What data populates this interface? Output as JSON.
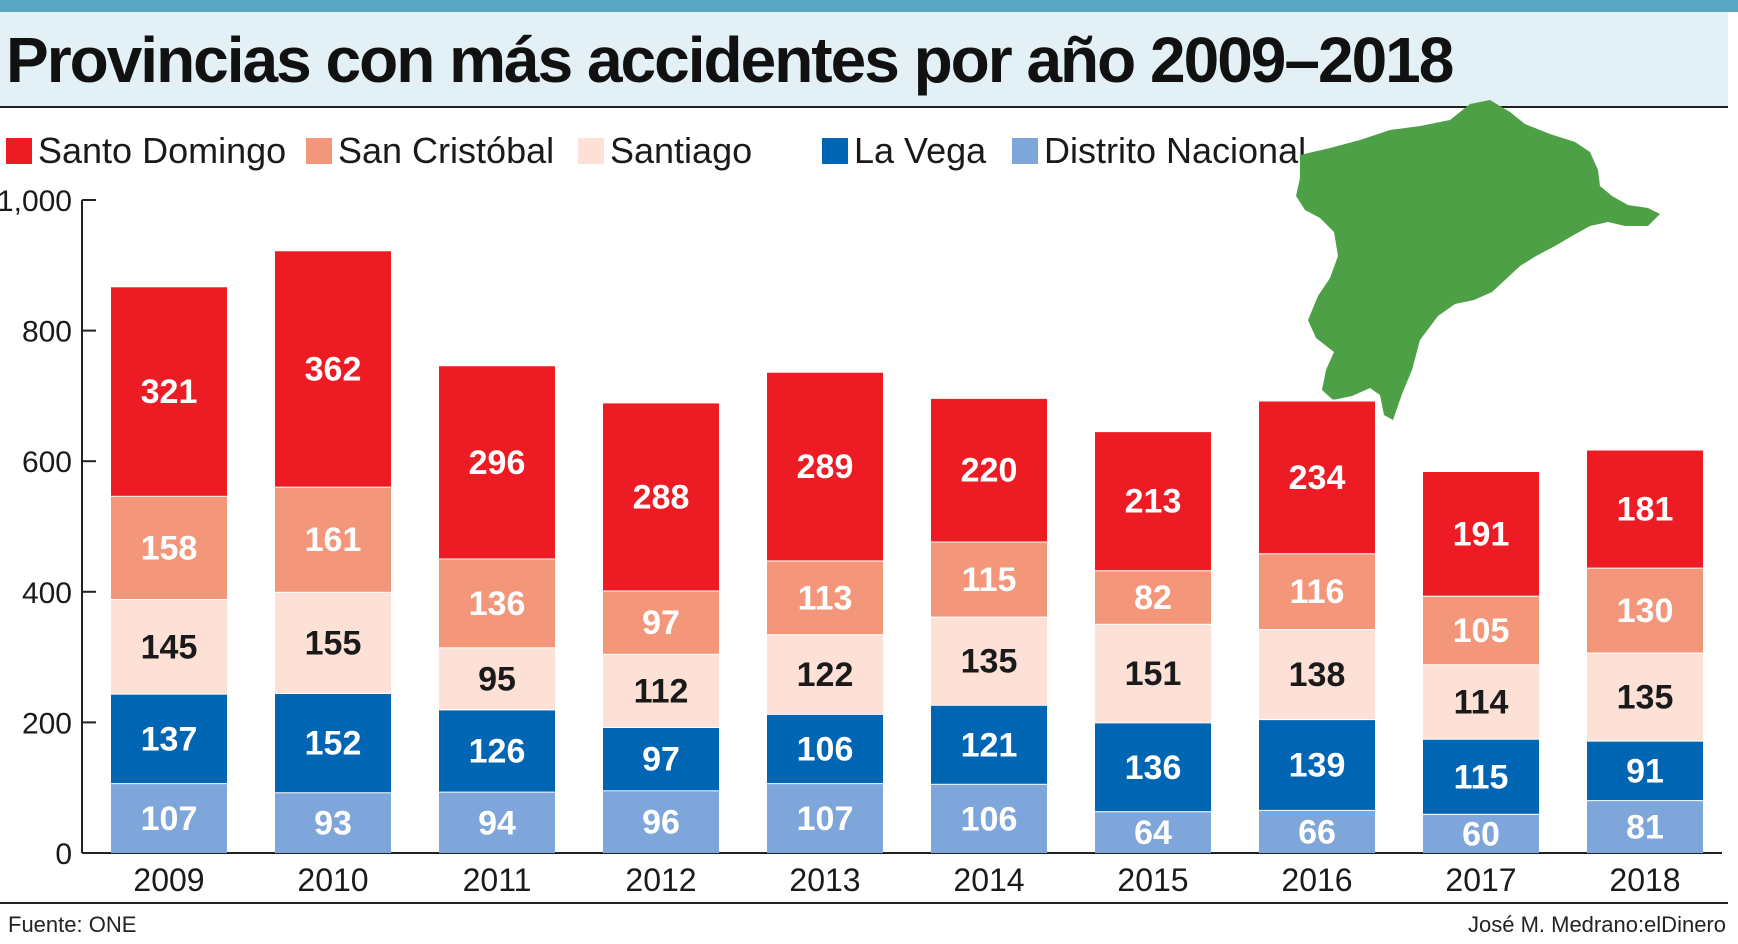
{
  "title": "Provincias con más accidentes  por año 2009–2018",
  "source": "Fuente: ONE",
  "credit": "José M. Medrano:elDinero",
  "map_icon": "dominican-republic-map-green",
  "colors": {
    "top_bar": "#5aa7c4",
    "title_band": "#e3f0f5",
    "map": "#4ea046"
  },
  "legend": [
    {
      "label": "Santo Domingo",
      "color": "#ed1c24"
    },
    {
      "label": "San Cristóbal",
      "color": "#f4967a"
    },
    {
      "label": "Santiago",
      "color": "#fde0d6"
    },
    {
      "label": "La Vega",
      "color": "#0066b3"
    },
    {
      "label": "Distrito Nacional",
      "color": "#7ea6da"
    }
  ],
  "chart_data": {
    "type": "bar",
    "stacked": true,
    "title": "Provincias con más accidentes  por año 2009–2018",
    "xlabel": "",
    "ylabel": "",
    "ylim": [
      0,
      1000
    ],
    "yticks": [
      0,
      200,
      400,
      600,
      800,
      1000
    ],
    "ytick_labels": [
      "0",
      "200",
      "400",
      "600",
      "800",
      "1,000"
    ],
    "grid": false,
    "legend_position": "top-left",
    "categories": [
      "2009",
      "2010",
      "2011",
      "2012",
      "2013",
      "2014",
      "2015",
      "2016",
      "2017",
      "2018"
    ],
    "series": [
      {
        "name": "Distrito Nacional",
        "color": "#7ea6da",
        "label_color": "#ffffff",
        "values": [
          107,
          93,
          94,
          96,
          107,
          106,
          64,
          66,
          60,
          81
        ]
      },
      {
        "name": "La Vega",
        "color": "#0066b3",
        "label_color": "#ffffff",
        "values": [
          137,
          152,
          126,
          97,
          106,
          121,
          136,
          139,
          115,
          91
        ]
      },
      {
        "name": "Santiago",
        "color": "#fde0d6",
        "label_color": "#1a1a1a",
        "values": [
          145,
          155,
          95,
          112,
          122,
          135,
          151,
          138,
          114,
          135
        ]
      },
      {
        "name": "San Cristóbal",
        "color": "#f4967a",
        "label_color": "#ffffff",
        "values": [
          158,
          161,
          136,
          97,
          113,
          115,
          82,
          116,
          105,
          130
        ]
      },
      {
        "name": "Santo Domingo",
        "color": "#ed1c24",
        "label_color": "#ffffff",
        "values": [
          321,
          362,
          296,
          288,
          289,
          220,
          213,
          234,
          191,
          181
        ]
      }
    ]
  }
}
